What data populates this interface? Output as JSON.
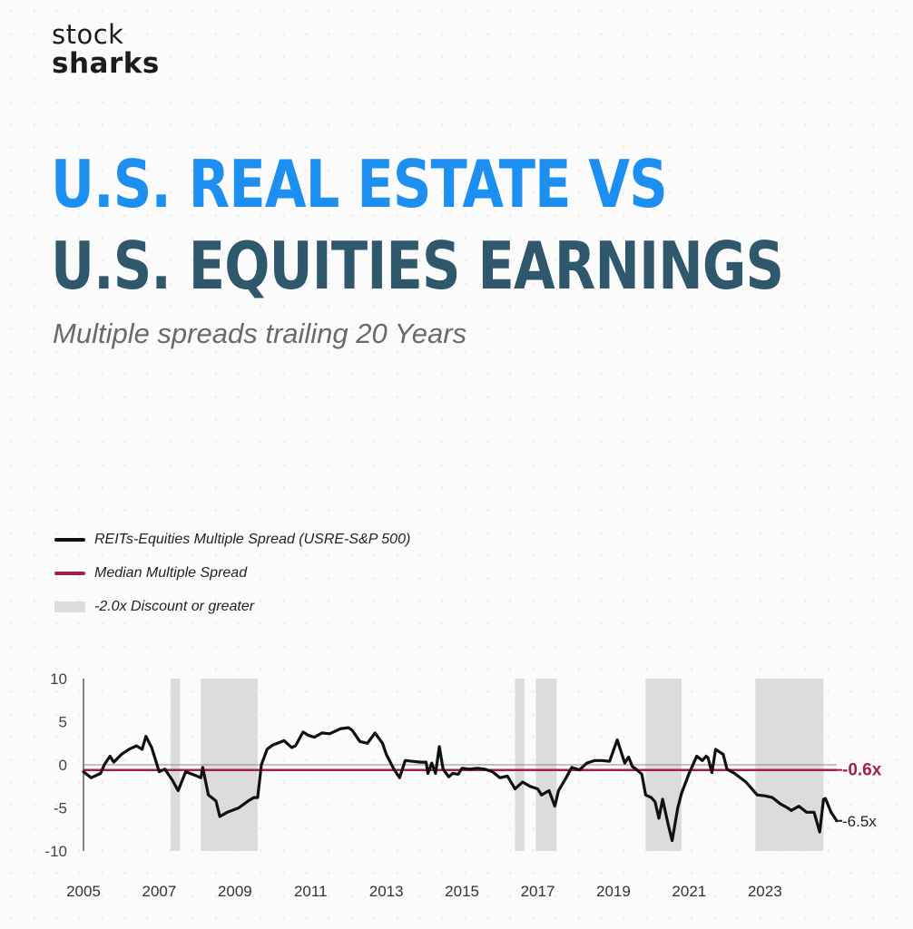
{
  "brand": {
    "line1": "stock",
    "line2": "sharks"
  },
  "header": {
    "title_line1": "U.S. REAL ESTATE VS",
    "title_line2": "U.S. EQUITIES EARNINGS",
    "subtitle": "Multiple spreads trailing 20 Years"
  },
  "colors": {
    "title_blue": "#1d8ff0",
    "title_dark": "#30586c",
    "series_line": "#111111",
    "median_line": "#a3204a",
    "shade": "#dcdcdc"
  },
  "chart_data": {
    "type": "line",
    "legend": [
      {
        "label": "REITs-Equities Multiple Spread (USRE-S&P 500)",
        "style": "line",
        "color": "#111111"
      },
      {
        "label": "Median Multiple Spread",
        "style": "line",
        "color": "#a3204a"
      },
      {
        "label": "-2.0x Discount or greater",
        "style": "box",
        "color": "#dcdcdc"
      }
    ],
    "legend_position": "top-left",
    "xlim": [
      2005,
      2024.9
    ],
    "ylim": [
      -10,
      10
    ],
    "x_ticks": [
      "2005",
      "2007",
      "2009",
      "2011",
      "2013",
      "2015",
      "2017",
      "2019",
      "2021",
      "2023"
    ],
    "y_ticks": [
      "10",
      "5",
      "0",
      "-5",
      "-10"
    ],
    "grid": false,
    "median_value": -0.6,
    "annotations": [
      {
        "x": 2024.9,
        "y": -0.6,
        "text": "-0.6x",
        "color": "#a3204a"
      },
      {
        "x": 2024.9,
        "y": -6.5,
        "text": "-6.5x",
        "color": "#222222"
      }
    ],
    "shaded_ranges": [
      [
        2007.3,
        2007.55
      ],
      [
        2008.1,
        2009.6
      ],
      [
        2016.4,
        2016.65
      ],
      [
        2016.95,
        2017.5
      ],
      [
        2019.85,
        2020.8
      ],
      [
        2022.75,
        2024.55
      ]
    ],
    "series": [
      {
        "name": "REITs-Equities Multiple Spread (USRE-S&P 500)",
        "x": [
          2005.0,
          2005.2,
          2005.45,
          2005.55,
          2005.7,
          2005.8,
          2006.0,
          2006.2,
          2006.4,
          2006.55,
          2006.65,
          2006.8,
          2007.0,
          2007.15,
          2007.35,
          2007.5,
          2007.7,
          2008.0,
          2008.1,
          2008.15,
          2008.3,
          2008.5,
          2008.6,
          2008.8,
          2009.1,
          2009.35,
          2009.5,
          2009.6,
          2009.7,
          2009.85,
          2010.0,
          2010.3,
          2010.5,
          2010.6,
          2010.8,
          2010.95,
          2011.1,
          2011.3,
          2011.5,
          2011.6,
          2011.8,
          2012.0,
          2012.1,
          2012.3,
          2012.5,
          2012.7,
          2012.9,
          2013.0,
          2013.2,
          2013.35,
          2013.5,
          2013.7,
          2013.9,
          2014.05,
          2014.1,
          2014.2,
          2014.3,
          2014.4,
          2014.5,
          2014.65,
          2014.75,
          2014.9,
          2015.0,
          2015.2,
          2015.4,
          2015.6,
          2015.8,
          2016.0,
          2016.2,
          2016.4,
          2016.6,
          2016.8,
          2017.0,
          2017.1,
          2017.3,
          2017.45,
          2017.55,
          2017.75,
          2017.9,
          2018.1,
          2018.3,
          2018.5,
          2018.7,
          2018.9,
          2019.1,
          2019.3,
          2019.4,
          2019.5,
          2019.6,
          2019.75,
          2019.85,
          2020.0,
          2020.1,
          2020.2,
          2020.3,
          2020.45,
          2020.55,
          2020.7,
          2020.8,
          2021.0,
          2021.2,
          2021.35,
          2021.45,
          2021.5,
          2021.6,
          2021.7,
          2021.9,
          2022.0,
          2022.2,
          2022.5,
          2022.8,
          2023.0,
          2023.2,
          2023.4,
          2023.6,
          2023.7,
          2023.9,
          2024.1,
          2024.3,
          2024.45,
          2024.55,
          2024.6,
          2024.75,
          2024.9
        ],
        "y": [
          -0.8,
          -1.5,
          -1.0,
          0.0,
          1.0,
          0.3,
          1.2,
          1.8,
          2.2,
          1.8,
          3.3,
          2.0,
          -0.8,
          -0.5,
          -1.8,
          -3.0,
          -0.8,
          -1.3,
          -1.5,
          -0.3,
          -3.5,
          -4.2,
          -6.0,
          -5.5,
          -5.0,
          -4.2,
          -3.8,
          -3.8,
          0.0,
          1.8,
          2.3,
          2.8,
          2.0,
          2.2,
          3.8,
          3.4,
          3.2,
          3.7,
          3.6,
          3.8,
          4.2,
          4.3,
          4.0,
          2.7,
          2.5,
          3.7,
          2.5,
          1.2,
          -0.5,
          -1.5,
          0.5,
          0.4,
          0.3,
          0.3,
          -1.0,
          0.2,
          -1.0,
          2.1,
          -0.5,
          -1.4,
          -1.0,
          -1.1,
          -0.4,
          -0.5,
          -0.4,
          -0.5,
          -0.8,
          -1.5,
          -1.3,
          -2.8,
          -2.0,
          -2.5,
          -2.8,
          -3.5,
          -3.0,
          -4.8,
          -3.0,
          -1.5,
          -0.3,
          -0.6,
          0.2,
          0.5,
          0.5,
          0.4,
          2.9,
          0.2,
          0.9,
          -0.2,
          -0.5,
          -1.1,
          -3.5,
          -3.8,
          -4.3,
          -6.2,
          -4.0,
          -7.0,
          -8.8,
          -5.0,
          -3.3,
          -1.0,
          1.0,
          0.5,
          1.0,
          0.8,
          -0.9,
          1.8,
          1.2,
          -0.5,
          -1.0,
          -2.0,
          -3.5,
          -3.6,
          -3.8,
          -4.5,
          -5.0,
          -5.3,
          -4.8,
          -5.5,
          -5.5,
          -7.8,
          -4.0,
          -3.9,
          -5.5,
          -6.5
        ]
      }
    ]
  }
}
